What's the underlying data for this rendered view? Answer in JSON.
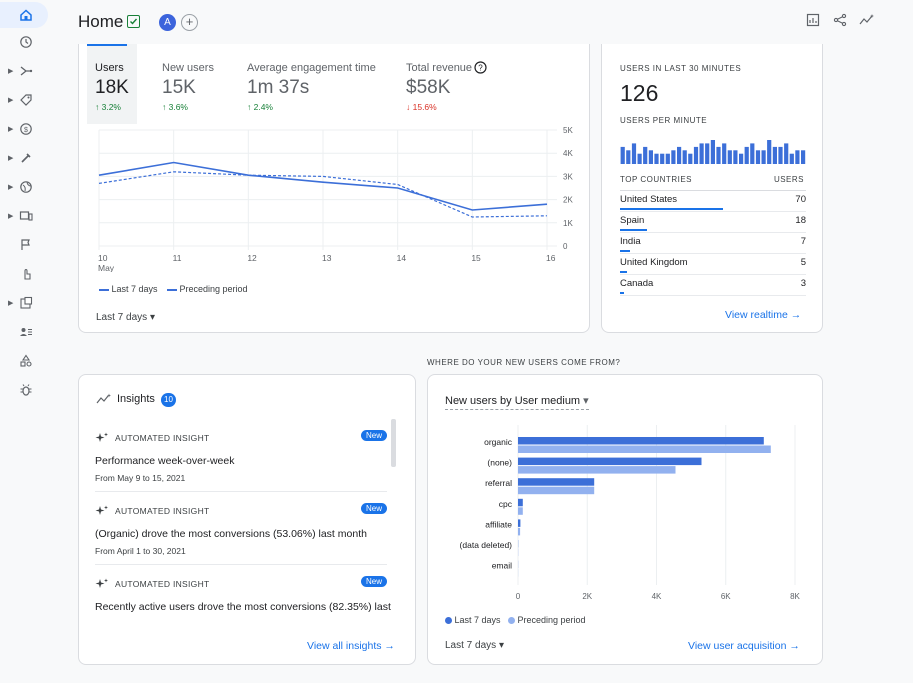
{
  "header": {
    "title": "Home",
    "avatar_letter": "A",
    "add_symbol": "+",
    "icons": [
      "customize-report-icon",
      "share-icon",
      "insights-icon"
    ]
  },
  "rail": {
    "items": [
      "home-icon",
      "reports-clock-icon",
      "acquisition-icon",
      "engagement-tag-icon",
      "monetization-icon",
      "retention-icon",
      "demographics-globe-icon",
      "tech-devices-icon",
      "events-flag-icon",
      "conversions-hand-icon",
      "library-icon",
      "audiences-icon",
      "custom-definitions-icon",
      "debugview-icon"
    ]
  },
  "metrics": [
    {
      "label": "Users",
      "value": "18K",
      "change": "↑ 3.2%",
      "direction": "up"
    },
    {
      "label": "New users",
      "value": "15K",
      "change": "↑ 3.6%",
      "direction": "up"
    },
    {
      "label": "Average engagement time",
      "value": "1m 37s",
      "change": "↑ 2.4%",
      "direction": "up"
    },
    {
      "label": "Total revenue",
      "value": "$58K",
      "change": "↓ 15.6%",
      "direction": "down"
    }
  ],
  "trend_legend": {
    "current": "Last 7 days",
    "previous": "Preceding period"
  },
  "trend_range": "Last 7 days",
  "realtime": {
    "caption": "USERS IN LAST 30 MINUTES",
    "value": "126",
    "per_minute_caption": "USERS PER MINUTE",
    "per_minute": [
      5,
      4,
      6,
      3,
      5,
      4,
      3,
      3,
      3,
      4,
      5,
      4,
      3,
      5,
      6,
      6,
      7,
      5,
      6,
      4,
      4,
      3,
      5,
      6,
      4,
      4,
      7,
      5,
      5,
      6,
      3,
      4,
      4
    ],
    "countries_header": "TOP COUNTRIES",
    "users_header": "USERS",
    "countries": [
      {
        "name": "United States",
        "users": "70",
        "share": 1.0
      },
      {
        "name": "Spain",
        "users": "18",
        "share": 0.26
      },
      {
        "name": "India",
        "users": "7",
        "share": 0.1
      },
      {
        "name": "United Kingdom",
        "users": "5",
        "share": 0.07
      },
      {
        "name": "Canada",
        "users": "3",
        "share": 0.04
      }
    ],
    "link": "View realtime →"
  },
  "section_caption": "WHERE DO YOUR NEW USERS COME FROM?",
  "insights": {
    "title": "Insights",
    "count": "10",
    "items": [
      {
        "head": "AUTOMATED INSIGHT",
        "badge": "New",
        "title": "Performance week-over-week",
        "sub": "From May 9 to 15, 2021"
      },
      {
        "head": "AUTOMATED INSIGHT",
        "badge": "New",
        "title": "(Organic) drove the most conversions (53.06%) last month",
        "sub": "From April 1 to 30, 2021"
      },
      {
        "head": "AUTOMATED INSIGHT",
        "badge": "New",
        "title": "Recently active users drove the most conversions (82.35%) last",
        "sub": ""
      }
    ],
    "link": "View all insights →"
  },
  "acquisition": {
    "dropdown": "New users by User medium",
    "range": "Last 7 days",
    "link": "View user acquisition →"
  },
  "chart_data": [
    {
      "type": "line",
      "x": [
        "10",
        "11",
        "12",
        "13",
        "14",
        "15",
        "16"
      ],
      "x_sublabel": "May",
      "series": [
        {
          "name": "Last 7 days",
          "values": [
            3050,
            3600,
            3050,
            2750,
            2500,
            1550,
            1800
          ]
        },
        {
          "name": "Preceding period",
          "values": [
            2700,
            3200,
            3050,
            3000,
            2650,
            1250,
            1300
          ]
        }
      ],
      "yticks": [
        "0",
        "1K",
        "2K",
        "3K",
        "4K",
        "5K"
      ],
      "ylim": [
        0,
        5000
      ]
    },
    {
      "type": "bar",
      "orientation": "horizontal",
      "categories": [
        "organic",
        "(none)",
        "referral",
        "cpc",
        "affiliate",
        "(data deleted)",
        "email"
      ],
      "series": [
        {
          "name": "Last 7 days",
          "values": [
            7100,
            5300,
            2200,
            140,
            70,
            5,
            2
          ]
        },
        {
          "name": "Preceding period",
          "values": [
            7300,
            4550,
            2200,
            140,
            60,
            5,
            2
          ]
        }
      ],
      "xticks": [
        "0",
        "2K",
        "4K",
        "6K",
        "8K"
      ],
      "xlim": [
        0,
        8000
      ]
    }
  ],
  "colors": {
    "current": "#3c6fd8",
    "previous": "#92b1ef",
    "accent": "#1a73e8",
    "up": "#188038",
    "down": "#d93025"
  }
}
